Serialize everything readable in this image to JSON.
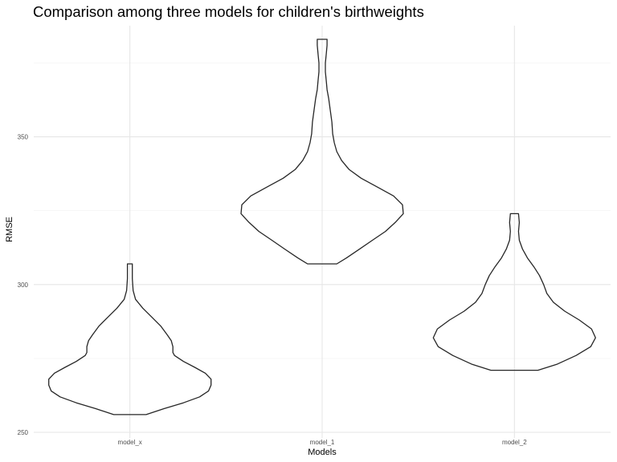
{
  "chart_data": {
    "type": "violin",
    "title": "Comparison among three models for children's birthweights",
    "xlabel": "Models",
    "ylabel": "RMSE",
    "categories": [
      "model_x",
      "model_1",
      "model_2"
    ],
    "y_ticks": [
      250,
      300,
      350
    ],
    "ylim": [
      250,
      385
    ],
    "grid": true,
    "colors": {
      "outline": "#262626",
      "grid": "#e6e6e6",
      "background": "#ffffff"
    },
    "violins": [
      {
        "category": "model_x",
        "profile": [
          [
            256,
            0.2
          ],
          [
            258,
            0.42
          ],
          [
            260,
            0.66
          ],
          [
            262,
            0.86
          ],
          [
            264,
            0.97
          ],
          [
            266,
            1.0
          ],
          [
            268,
            1.0
          ],
          [
            270,
            0.93
          ],
          [
            272,
            0.8
          ],
          [
            274,
            0.66
          ],
          [
            276,
            0.55
          ],
          [
            277,
            0.53
          ],
          [
            279,
            0.53
          ],
          [
            281,
            0.51
          ],
          [
            283,
            0.46
          ],
          [
            286,
            0.38
          ],
          [
            289,
            0.27
          ],
          [
            292,
            0.16
          ],
          [
            295,
            0.07
          ],
          [
            298,
            0.04
          ],
          [
            302,
            0.03
          ],
          [
            305,
            0.03
          ],
          [
            307,
            0.03
          ]
        ]
      },
      {
        "category": "model_1",
        "profile": [
          [
            307,
            0.18
          ],
          [
            309,
            0.3
          ],
          [
            312,
            0.46
          ],
          [
            315,
            0.62
          ],
          [
            318,
            0.78
          ],
          [
            321,
            0.9
          ],
          [
            324,
            1.0
          ],
          [
            327,
            0.99
          ],
          [
            330,
            0.88
          ],
          [
            333,
            0.68
          ],
          [
            336,
            0.48
          ],
          [
            339,
            0.33
          ],
          [
            342,
            0.24
          ],
          [
            345,
            0.18
          ],
          [
            348,
            0.15
          ],
          [
            351,
            0.13
          ],
          [
            355,
            0.12
          ],
          [
            359,
            0.1
          ],
          [
            363,
            0.08
          ],
          [
            366,
            0.06
          ],
          [
            369,
            0.05
          ],
          [
            372,
            0.04
          ],
          [
            375,
            0.04
          ],
          [
            378,
            0.05
          ],
          [
            381,
            0.06
          ],
          [
            383,
            0.06
          ]
        ]
      },
      {
        "category": "model_2",
        "profile": [
          [
            271,
            0.29
          ],
          [
            273,
            0.52
          ],
          [
            276,
            0.76
          ],
          [
            279,
            0.94
          ],
          [
            282,
            1.0
          ],
          [
            285,
            0.95
          ],
          [
            288,
            0.8
          ],
          [
            291,
            0.62
          ],
          [
            294,
            0.48
          ],
          [
            297,
            0.4
          ],
          [
            300,
            0.36
          ],
          [
            303,
            0.31
          ],
          [
            306,
            0.24
          ],
          [
            309,
            0.16
          ],
          [
            312,
            0.1
          ],
          [
            315,
            0.06
          ],
          [
            318,
            0.05
          ],
          [
            321,
            0.06
          ],
          [
            324,
            0.05
          ]
        ]
      }
    ]
  }
}
